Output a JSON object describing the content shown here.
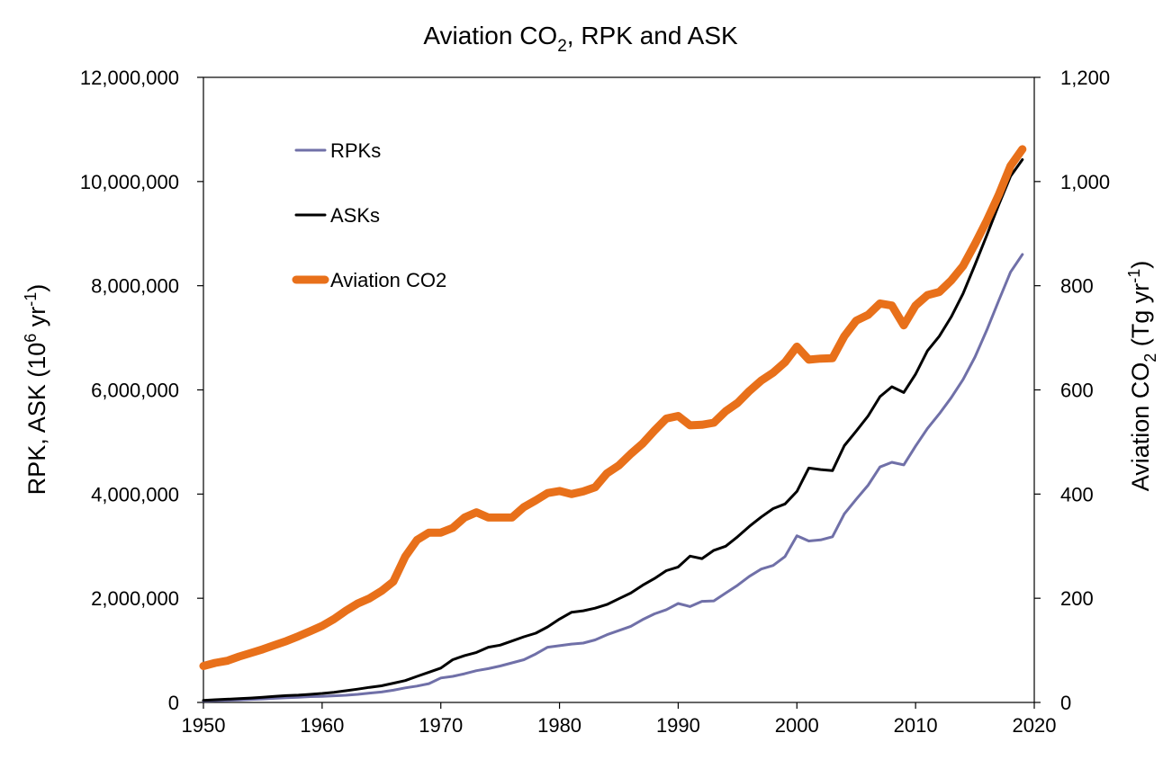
{
  "chart_data": {
    "type": "line",
    "title": "Aviation CO",
    "title_sub": "2",
    "title_rest": ", RPK and ASK",
    "ylabel_left": "RPK, ASK (10",
    "ylabel_left_sup1": "6",
    "ylabel_left_mid": " yr",
    "ylabel_left_sup2": "-1",
    "ylabel_left_end": ")",
    "ylabel_right": "Aviation CO",
    "ylabel_right_sub": "2",
    "ylabel_right_mid": " (Tg yr",
    "ylabel_right_sup": "-1",
    "ylabel_right_end": ")",
    "xlim": [
      1950,
      2020
    ],
    "ylim_left": [
      0,
      12000000
    ],
    "ylim_right": [
      0,
      1200
    ],
    "x_ticks": [
      "1950",
      "1960",
      "1970",
      "1980",
      "1990",
      "2000",
      "2010",
      "2020"
    ],
    "y_left_ticks": [
      "0",
      "2,000,000",
      "4,000,000",
      "6,000,000",
      "8,000,000",
      "10,000,000",
      "12,000,000"
    ],
    "y_right_ticks": [
      "0",
      "200",
      "400",
      "600",
      "800",
      "1,000",
      "1,200"
    ],
    "grid": false,
    "legend_position": "top-left",
    "series": [
      {
        "name": "RPKs",
        "axis": "left",
        "color": "#7070a8",
        "x": [
          1950,
          1951,
          1952,
          1953,
          1954,
          1955,
          1956,
          1957,
          1958,
          1959,
          1960,
          1961,
          1962,
          1963,
          1964,
          1965,
          1966,
          1967,
          1968,
          1969,
          1970,
          1971,
          1972,
          1973,
          1974,
          1975,
          1976,
          1977,
          1978,
          1979,
          1980,
          1981,
          1982,
          1983,
          1984,
          1985,
          1986,
          1987,
          1988,
          1989,
          1990,
          1991,
          1992,
          1993,
          1994,
          1995,
          1996,
          1997,
          1998,
          1999,
          2000,
          2001,
          2002,
          2003,
          2004,
          2005,
          2006,
          2007,
          2008,
          2009,
          2010,
          2011,
          2012,
          2013,
          2014,
          2015,
          2016,
          2017,
          2018,
          2019
        ],
        "values": [
          28000,
          34000,
          40000,
          48000,
          58000,
          67000,
          80000,
          92000,
          98000,
          112000,
          118000,
          127000,
          138000,
          155000,
          180000,
          200000,
          235000,
          280000,
          315000,
          360000,
          470000,
          500000,
          550000,
          610000,
          650000,
          700000,
          760000,
          820000,
          930000,
          1060000,
          1090000,
          1120000,
          1140000,
          1200000,
          1300000,
          1380000,
          1460000,
          1590000,
          1700000,
          1780000,
          1900000,
          1840000,
          1940000,
          1950000,
          2100000,
          2250000,
          2420000,
          2560000,
          2630000,
          2800000,
          3200000,
          3100000,
          3120000,
          3180000,
          3620000,
          3900000,
          4170000,
          4520000,
          4610000,
          4560000,
          4920000,
          5260000,
          5540000,
          5850000,
          6200000,
          6630000,
          7150000,
          7710000,
          8260000,
          8600000
        ]
      },
      {
        "name": "ASKs",
        "axis": "left",
        "color": "#000000",
        "x": [
          1950,
          1951,
          1952,
          1953,
          1954,
          1955,
          1956,
          1957,
          1958,
          1959,
          1960,
          1961,
          1962,
          1963,
          1964,
          1965,
          1966,
          1967,
          1968,
          1969,
          1970,
          1971,
          1972,
          1973,
          1974,
          1975,
          1976,
          1977,
          1978,
          1979,
          1980,
          1981,
          1982,
          1983,
          1984,
          1985,
          1986,
          1987,
          1988,
          1989,
          1990,
          1991,
          1992,
          1993,
          1994,
          1995,
          1996,
          1997,
          1998,
          1999,
          2000,
          2001,
          2002,
          2003,
          2004,
          2005,
          2006,
          2007,
          2008,
          2009,
          2010,
          2011,
          2012,
          2013,
          2014,
          2015,
          2016,
          2017,
          2018,
          2019
        ],
        "values": [
          40000,
          52000,
          62000,
          72000,
          85000,
          100000,
          115000,
          132000,
          140000,
          155000,
          172000,
          195000,
          225000,
          255000,
          290000,
          320000,
          370000,
          420000,
          500000,
          580000,
          660000,
          820000,
          900000,
          960000,
          1060000,
          1100000,
          1180000,
          1260000,
          1330000,
          1450000,
          1600000,
          1730000,
          1760000,
          1810000,
          1880000,
          1990000,
          2100000,
          2250000,
          2380000,
          2530000,
          2600000,
          2810000,
          2760000,
          2920000,
          3000000,
          3180000,
          3380000,
          3560000,
          3720000,
          3810000,
          4050000,
          4500000,
          4470000,
          4450000,
          4930000,
          5210000,
          5500000,
          5870000,
          6060000,
          5950000,
          6300000,
          6750000,
          7030000,
          7400000,
          7850000,
          8400000,
          8970000,
          9550000,
          10100000,
          10420000
        ]
      },
      {
        "name": "Aviation CO2",
        "axis": "right",
        "color": "#e8701a",
        "x": [
          1950,
          1951,
          1952,
          1953,
          1954,
          1955,
          1956,
          1957,
          1958,
          1959,
          1960,
          1961,
          1962,
          1963,
          1964,
          1965,
          1966,
          1967,
          1968,
          1969,
          1970,
          1971,
          1972,
          1973,
          1974,
          1975,
          1976,
          1977,
          1978,
          1979,
          1980,
          1981,
          1982,
          1983,
          1984,
          1985,
          1986,
          1987,
          1988,
          1989,
          1990,
          1991,
          1992,
          1993,
          1994,
          1995,
          1996,
          1997,
          1998,
          1999,
          2000,
          2001,
          2002,
          2003,
          2004,
          2005,
          2006,
          2007,
          2008,
          2009,
          2010,
          2011,
          2012,
          2013,
          2014,
          2015,
          2016,
          2017,
          2018,
          2019
        ],
        "values": [
          70,
          76,
          80,
          88,
          95,
          102,
          110,
          118,
          127,
          137,
          147,
          160,
          176,
          190,
          200,
          214,
          232,
          280,
          312,
          326,
          326,
          335,
          355,
          365,
          355,
          355,
          355,
          375,
          388,
          402,
          406,
          400,
          405,
          413,
          440,
          455,
          477,
          497,
          522,
          545,
          550,
          532,
          533,
          537,
          559,
          575,
          598,
          618,
          633,
          653,
          683,
          658,
          660,
          661,
          703,
          733,
          744,
          766,
          762,
          724,
          762,
          782,
          788,
          810,
          838,
          880,
          925,
          974,
          1030,
          1062
        ]
      }
    ]
  }
}
